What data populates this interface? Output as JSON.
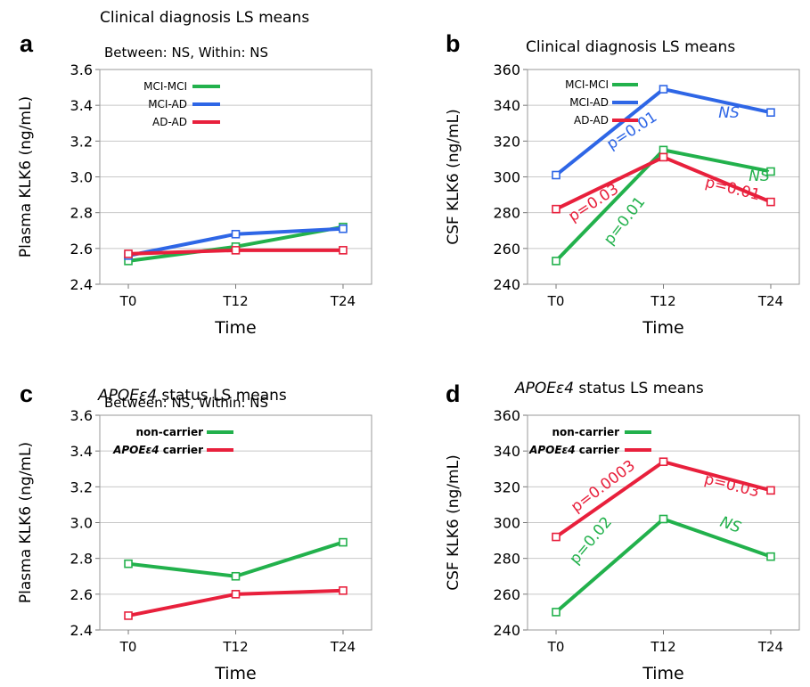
{
  "chart_data": [
    {
      "panel": "a",
      "type": "line",
      "title": "Clinical diagnosis LS means",
      "subtitle": "Between: NS, Within: NS",
      "xlabel": "Time",
      "ylabel": "Plasma KLK6 (ng/mL)",
      "categories": [
        "T0",
        "T12",
        "T24"
      ],
      "ylim": [
        2.4,
        3.6
      ],
      "yticks": [
        "2.4",
        "2.6",
        "2.8",
        "3.0",
        "3.2",
        "3.4",
        "3.6"
      ],
      "legend_position": "top-left",
      "series": [
        {
          "name": "MCI-MCI",
          "color": "#22b14c",
          "values": [
            2.53,
            2.61,
            2.72
          ]
        },
        {
          "name": "MCI-AD",
          "color": "#2e66e6",
          "values": [
            2.56,
            2.68,
            2.71
          ]
        },
        {
          "name": "AD-AD",
          "color": "#e8203c",
          "values": [
            2.57,
            2.59,
            2.59
          ]
        }
      ],
      "annotations": []
    },
    {
      "panel": "b",
      "type": "line",
      "title": "Clinical diagnosis LS means",
      "subtitle": "",
      "xlabel": "Time",
      "ylabel": "CSF KLK6 (ng/mL)",
      "categories": [
        "T0",
        "T12",
        "T24"
      ],
      "ylim": [
        240,
        360
      ],
      "yticks": [
        "240",
        "260",
        "280",
        "300",
        "320",
        "340",
        "360"
      ],
      "legend_position": "top-left",
      "series": [
        {
          "name": "MCI-MCI",
          "color": "#22b14c",
          "values": [
            253,
            315,
            303
          ]
        },
        {
          "name": "MCI-AD",
          "color": "#2e66e6",
          "values": [
            301,
            349,
            336
          ]
        },
        {
          "name": "AD-AD",
          "color": "#e8203c",
          "values": [
            282,
            311,
            286
          ]
        }
      ],
      "annotations": [
        {
          "text": "p=0.01",
          "color": "#2e66e6",
          "italic": false
        },
        {
          "text": "NS",
          "color": "#2e66e6",
          "italic": true
        },
        {
          "text": "NS",
          "color": "#22b14c",
          "italic": true
        },
        {
          "text": "p=0.03",
          "color": "#e8203c",
          "italic": false
        },
        {
          "text": "p=0.01",
          "color": "#e8203c",
          "italic": false
        },
        {
          "text": "p=0.01",
          "color": "#22b14c",
          "italic": false
        }
      ]
    },
    {
      "panel": "c",
      "type": "line",
      "title_italic": "APOEε4",
      "title": " status LS means",
      "subtitle": "Between: NS, Within: NS",
      "xlabel": "Time",
      "ylabel": "Plasma KLK6 (ng/mL)",
      "categories": [
        "T0",
        "T12",
        "T24"
      ],
      "ylim": [
        2.4,
        3.6
      ],
      "yticks": [
        "2.4",
        "2.6",
        "2.8",
        "3.0",
        "3.2",
        "3.4",
        "3.6"
      ],
      "legend_position": "top-left",
      "series": [
        {
          "name": "non-carrier",
          "color": "#22b14c",
          "values": [
            2.77,
            2.7,
            2.89
          ]
        },
        {
          "name": "APOEε4 carrier",
          "name_italic": "APOEε4",
          "name_rest": " carrier",
          "color": "#e8203c",
          "values": [
            2.48,
            2.6,
            2.62
          ]
        }
      ],
      "annotations": []
    },
    {
      "panel": "d",
      "type": "line",
      "title_italic": "APOEε4",
      "title": " status LS means",
      "subtitle": "",
      "xlabel": "Time",
      "ylabel": "CSF KLK6 (ng/mL)",
      "categories": [
        "T0",
        "T12",
        "T24"
      ],
      "ylim": [
        240,
        360
      ],
      "yticks": [
        "240",
        "260",
        "280",
        "300",
        "320",
        "340",
        "360"
      ],
      "legend_position": "top-left",
      "series": [
        {
          "name": "non-carrier",
          "color": "#22b14c",
          "values": [
            250,
            302,
            281
          ]
        },
        {
          "name": "APOEε4 carrier",
          "name_italic": "APOEε4",
          "name_rest": " carrier",
          "color": "#e8203c",
          "values": [
            292,
            334,
            318
          ]
        }
      ],
      "annotations": [
        {
          "text": "p=0.0003",
          "color": "#e8203c",
          "italic": false
        },
        {
          "text": "p=0.03",
          "color": "#e8203c",
          "italic": false
        },
        {
          "text": "NS",
          "color": "#22b14c",
          "italic": true
        },
        {
          "text": "p=0.02",
          "color": "#22b14c",
          "italic": false
        }
      ]
    }
  ]
}
